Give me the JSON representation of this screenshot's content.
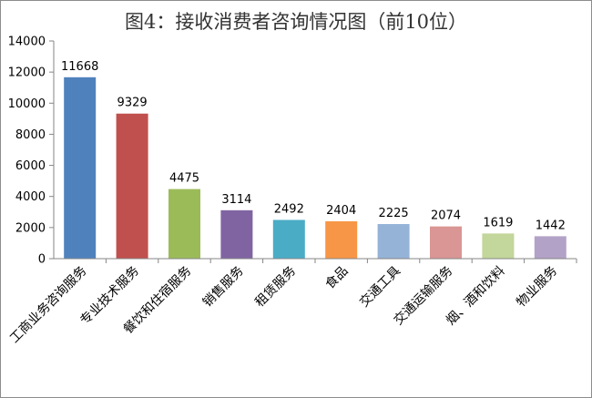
{
  "chart_data": {
    "type": "bar",
    "title": "图4：接收消费者咨询情况图（前10位）",
    "xlabel": "",
    "ylabel": "",
    "ylim": [
      0,
      14000
    ],
    "yticks": [
      "0",
      "2000",
      "4000",
      "6000",
      "8000",
      "10000",
      "12000",
      "14000"
    ],
    "categories": [
      "工商业务咨询服务",
      "专业技术服务",
      "餐饮和住宿服务",
      "销售服务",
      "租赁服务",
      "食品",
      "交通工具",
      "交通运输服务",
      "烟、酒和饮料",
      "物业服务"
    ],
    "values": [
      11668,
      9329,
      4475,
      3114,
      2492,
      2404,
      2225,
      2074,
      1619,
      1442
    ],
    "data_labels": [
      "11668",
      "9329",
      "4475",
      "3114",
      "2492",
      "2404",
      "2225",
      "2074",
      "1619",
      "1442"
    ],
    "colors": [
      "#4f81bd",
      "#c0504d",
      "#9bbb59",
      "#8064a2",
      "#4bacc6",
      "#f79646",
      "#95b3d7",
      "#d99694",
      "#c3d69b",
      "#b3a2c7"
    ],
    "grid": false,
    "legend": "none"
  }
}
